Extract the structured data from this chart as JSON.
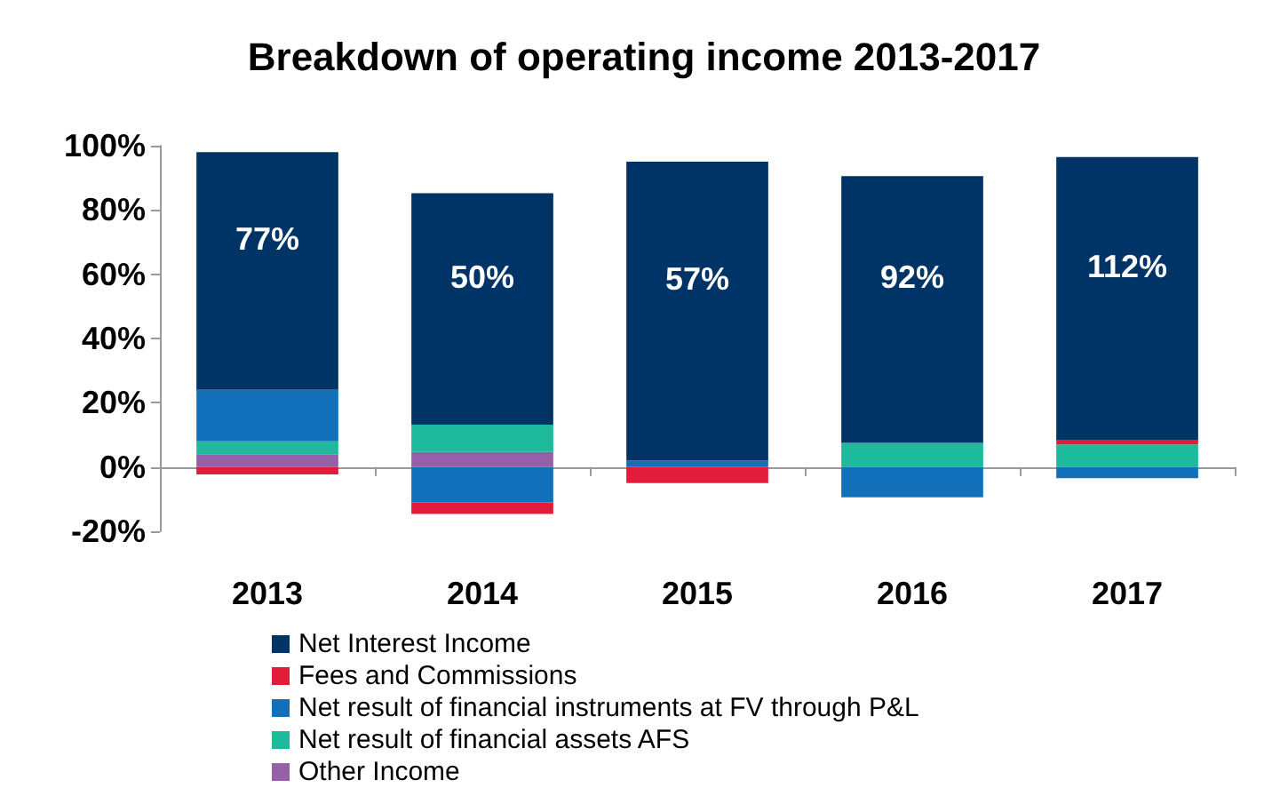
{
  "chart_data": {
    "type": "bar",
    "title": "Breakdown of operating income 2013-2017",
    "categories": [
      "2013",
      "2014",
      "2015",
      "2016",
      "2017"
    ],
    "stacked": true,
    "series": [
      {
        "name": "Other Income",
        "color": "#9660a8",
        "values": [
          4,
          4.7,
          null,
          null,
          null
        ]
      },
      {
        "name": "Net result of financial assets AFS",
        "color": "#1dbb9b",
        "values": [
          4,
          8.5,
          null,
          7.5,
          7
        ]
      },
      {
        "name": "Net result of financial instruments at FV through P&L",
        "color": "#1270bb",
        "values": [
          16,
          -11,
          2,
          -9.4,
          -3.5
        ]
      },
      {
        "name": "Fees and Commissions",
        "color": "#e31b3b",
        "values": [
          -2.3,
          -3.6,
          -5,
          null,
          1.5
        ]
      },
      {
        "name": "Net Interest Income",
        "color": "#003366",
        "values": [
          74,
          72,
          93,
          83,
          88
        ]
      }
    ],
    "ylim": [
      -20,
      100
    ],
    "yticks": [
      {
        "value": -20,
        "label": "-20%"
      },
      {
        "value": 0,
        "label": "0%"
      },
      {
        "value": 20,
        "label": "20%"
      },
      {
        "value": 40,
        "label": "40%"
      },
      {
        "value": 60,
        "label": "60%"
      },
      {
        "value": 80,
        "label": "80%"
      },
      {
        "value": 100,
        "label": "100%"
      }
    ],
    "annotations": [
      "77%",
      "50%",
      "57%",
      "92%",
      "112%"
    ],
    "legend": "bottom"
  }
}
